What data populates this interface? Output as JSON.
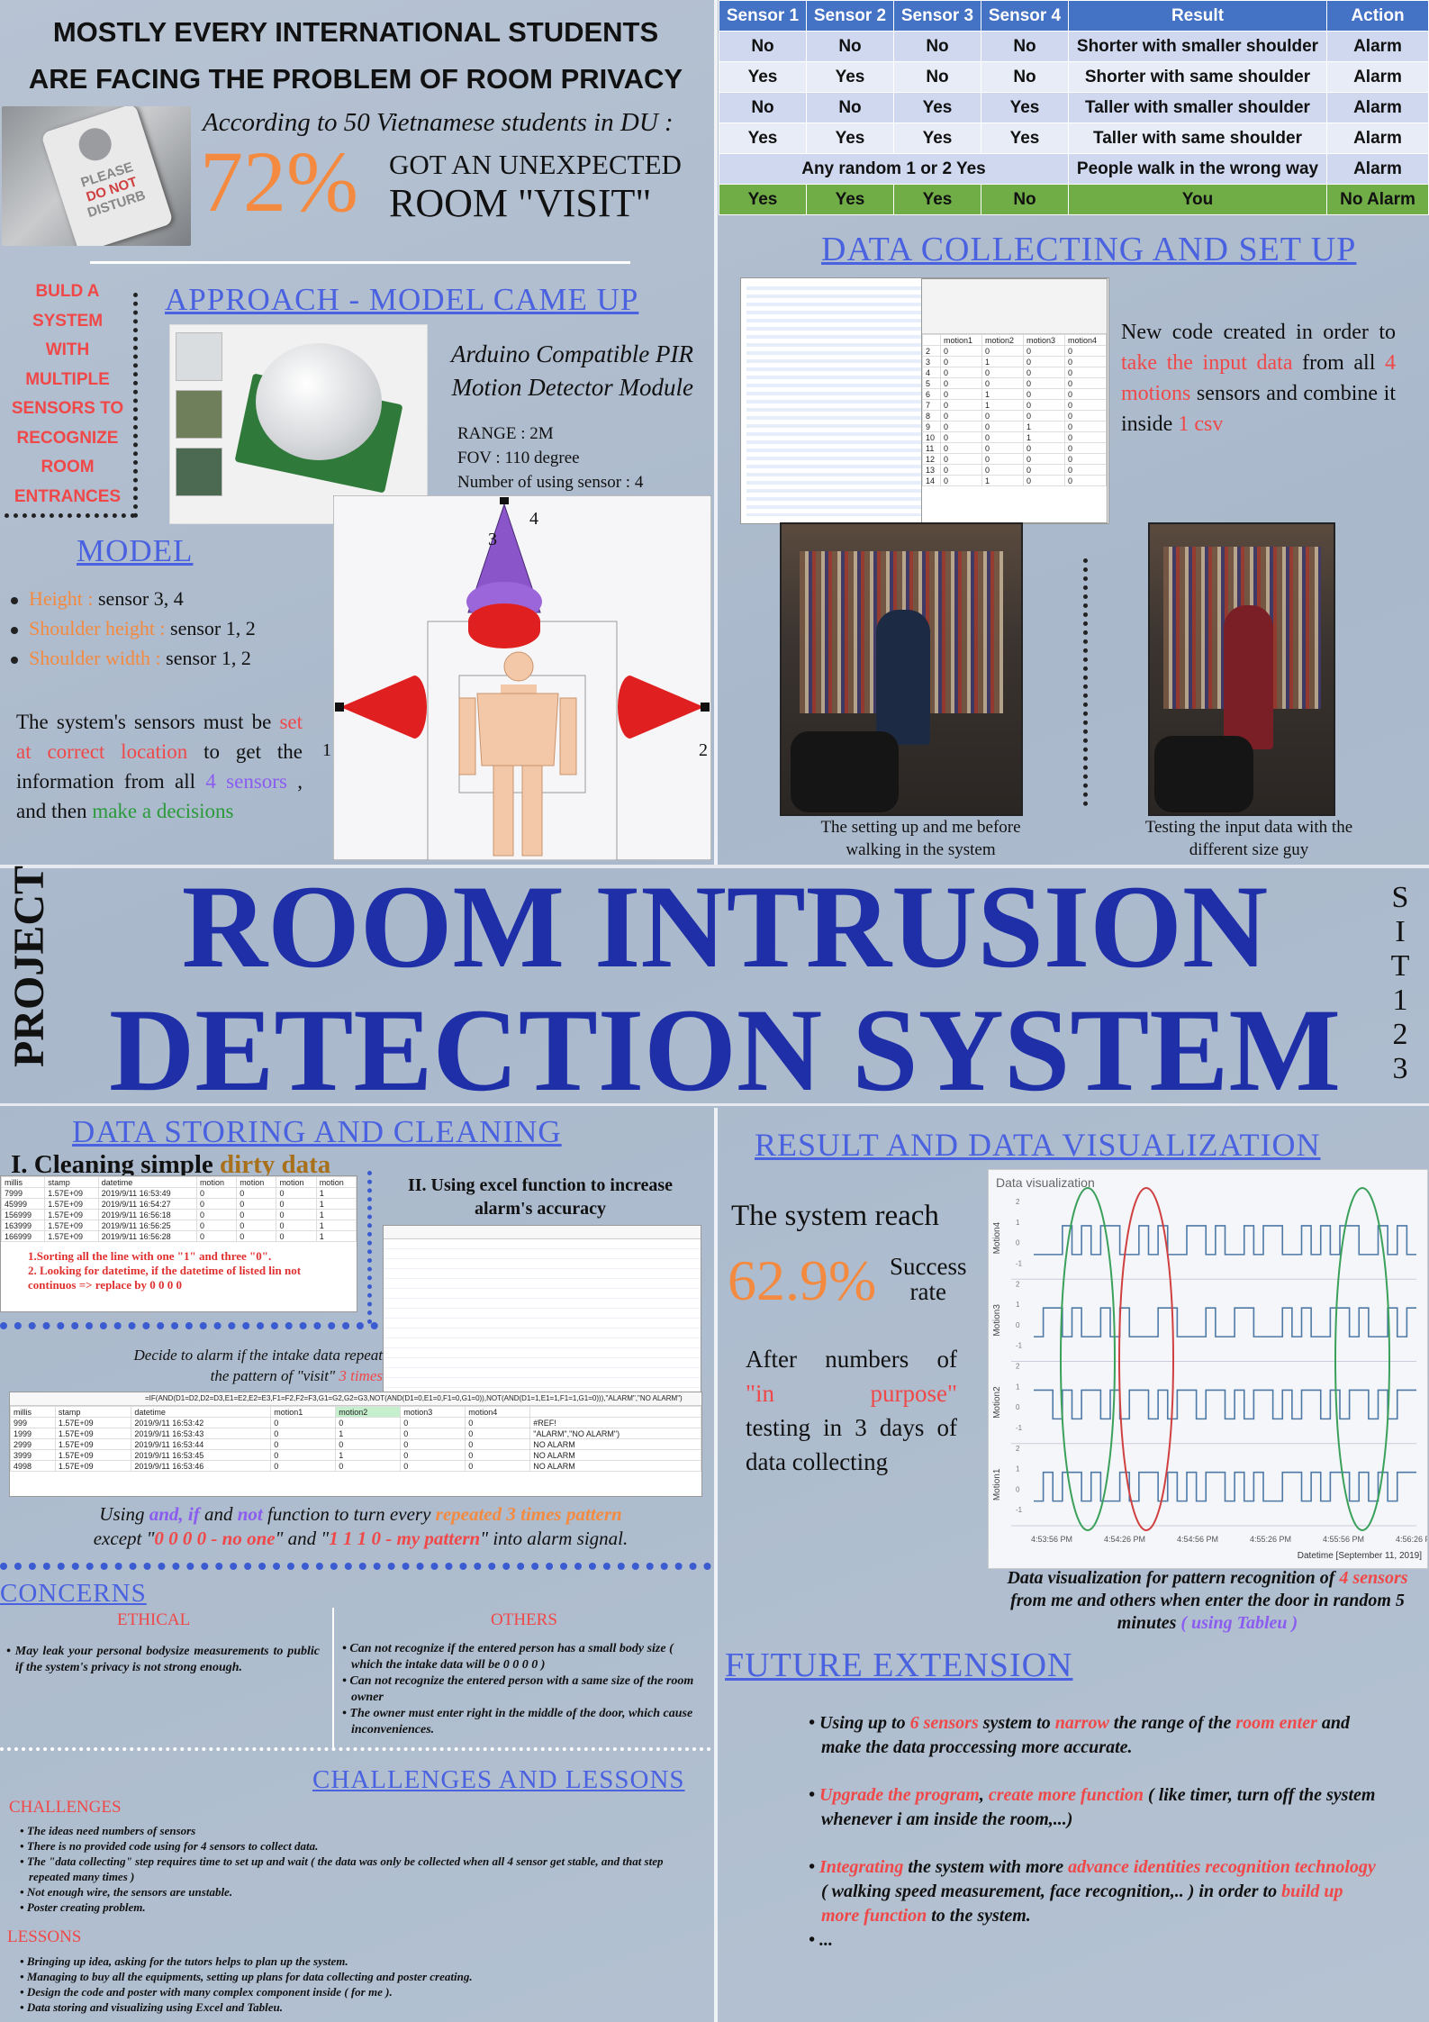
{
  "headline": {
    "line1": "MOSTLY EVERY INTERNATIONAL STUDENTS",
    "line2": "ARE FACING THE PROBLEM OF ROOM PRIVACY",
    "survey": "According to 50 Vietnamese students in DU :",
    "percent": "72%",
    "got": "GOT AN UNEXPECTED",
    "room_visit": "ROOM \"VISIT\"",
    "sign": [
      "PLEASE",
      "DO NOT",
      "DISTURB"
    ]
  },
  "sensor_table": {
    "headers": [
      "Sensor 1",
      "Sensor 2",
      "Sensor 3",
      "Sensor 4",
      "Result",
      "Action"
    ],
    "rows": [
      [
        "No",
        "No",
        "No",
        "No",
        "Shorter with smaller shoulder",
        "Alarm"
      ],
      [
        "Yes",
        "Yes",
        "No",
        "No",
        "Shorter with same shoulder",
        "Alarm"
      ],
      [
        "No",
        "No",
        "Yes",
        "Yes",
        "Taller with smaller shoulder",
        "Alarm"
      ],
      [
        "Yes",
        "Yes",
        "Yes",
        "Yes",
        "Taller with same shoulder",
        "Alarm"
      ]
    ],
    "random_row": {
      "label": "Any random 1 or 2 Yes",
      "result": "People walk in the wrong way",
      "action": "Alarm"
    },
    "final_row": [
      "Yes",
      "Yes",
      "Yes",
      "No",
      "You",
      "No Alarm"
    ]
  },
  "approach": {
    "title": "APPROACH - MODEL CAME UP",
    "side_text": [
      "BULD A",
      "SYSTEM",
      "WITH",
      "MULTIPLE",
      "SENSORS TO",
      "RECOGNIZE",
      "ROOM",
      "ENTRANCES"
    ],
    "module_line1": "Arduino Compatible PIR",
    "module_line2": "Motion Detector Module",
    "range": "RANGE : 2M",
    "fov": "FOV : 110 degree",
    "count": "Number of using sensor : 4"
  },
  "model": {
    "title": "MODEL",
    "items": [
      {
        "label": "Height :",
        "value": " sensor 3, 4"
      },
      {
        "label": "Shoulder height :",
        "value": " sensor 1, 2"
      },
      {
        "label": "Shoulder width :",
        "value": " sensor 1, 2"
      }
    ],
    "para": {
      "p1": "The system's sensors must be ",
      "p2": "set at correct location",
      "p3": " to get the information from all ",
      "p4": "4 sensors",
      "p5": " , and then ",
      "p6": "make a decisions"
    },
    "diagram_labels": [
      "3",
      "4",
      "1",
      "2"
    ]
  },
  "data_collect": {
    "title": "DATA COLLECTING AND SET UP",
    "t1": "New code created in order to ",
    "t2": "take the input data",
    "t3": " from all ",
    "t4": "4 motions",
    "t5": " sensors and combine it inside ",
    "t6": "1 csv",
    "caption1": "The setting up and me before walking in the system",
    "caption2": "Testing the input data with the different size guy",
    "excel_cols": [
      "motion1",
      "motion2",
      "motion3",
      "motion4"
    ]
  },
  "title": {
    "project": "PROJECT",
    "line1": "ROOM INTRUSION",
    "line2": "DETECTION SYSTEM",
    "code": [
      "S",
      "I",
      "T",
      "1",
      "2",
      "3"
    ]
  },
  "storing": {
    "title": "DATA STORING AND CLEANING",
    "h1a": "I. Cleaning simple ",
    "h1b": "dirty data",
    "h2": "II. Using excel function to increase alarm's accuracy",
    "note1": "1.Sorting all the line with one \"1\" and three \"0\".",
    "note2": "2. Looking for datetime, if the datetime of listed lin not continuos => replace by 0 0 0 0",
    "decide1": "Decide to alarm if the intake data repeat",
    "decide2a": "the pattern of \"visit\" ",
    "decide2b": "3 times",
    "formula": "=IF(AND(D1=D2,D2=D3,E1=E2,E2=E3,F1=F2,F2=F3,G1=G2,G2=G3,NOT(AND(D1=0,E1=0,F1=0,G1=0)),NOT(AND(D1=1,E1=1,F1=1,G1=0))),\"ALARM\",\"NO ALARM\")",
    "using": {
      "a": "Using ",
      "b": "and, if",
      "c": " and ",
      "d": "not",
      "e": " function to turn every ",
      "f": "repeated 3 times pattern",
      "g": "except \"",
      "h": "0 0 0 0 - no one",
      "i": "\" and \"",
      "j": "1 1 1 0 - my pattern",
      "k": "\" into alarm signal."
    }
  },
  "result": {
    "title": "RESULT AND DATA VISUALIZATION",
    "reach": "The system reach",
    "percent": "62.9%",
    "success": "Success",
    "rate": "rate",
    "after1": "After numbers of",
    "after2": "\"in purpose\"",
    "after3": "testing in 3 days of data collecting",
    "chart_title": "Data visualization",
    "caption_a": "Data visualization for pattern recognition of ",
    "caption_b": "4 sensors",
    "caption_c": " from me and others when enter the door in random 5 minutes ",
    "caption_d": "( using Tableu )"
  },
  "chart_data": {
    "type": "line",
    "title": "Data visualization",
    "xlabel": "Datetime [September 11, 2019]",
    "x_ticks": [
      "4:53:56 PM",
      "4:54:26 PM",
      "4:54:56 PM",
      "4:55:26 PM",
      "4:55:56 PM",
      "4:56:26 PM"
    ],
    "series": [
      {
        "name": "Motion4",
        "values": [
          0,
          0,
          0,
          1,
          0,
          1,
          0,
          1,
          1,
          0,
          0,
          1,
          0,
          1,
          0,
          0,
          1,
          1,
          0,
          1,
          0,
          0,
          1,
          0,
          1,
          1,
          0,
          0,
          1,
          0,
          1,
          0,
          1,
          1,
          0,
          0,
          1,
          0,
          1,
          0
        ]
      },
      {
        "name": "Motion3",
        "values": [
          0,
          1,
          1,
          0,
          1,
          0,
          0,
          1,
          0,
          1,
          0,
          0,
          0,
          1,
          1,
          0,
          0,
          0,
          1,
          0,
          0,
          1,
          1,
          0,
          0,
          0,
          1,
          0,
          1,
          0,
          0,
          1,
          1,
          0,
          1,
          0,
          0,
          1,
          0,
          1
        ]
      },
      {
        "name": "Motion2",
        "values": [
          1,
          1,
          0,
          1,
          0,
          1,
          1,
          0,
          1,
          0,
          1,
          1,
          0,
          1,
          0,
          1,
          1,
          0,
          1,
          1,
          0,
          1,
          0,
          1,
          1,
          0,
          1,
          0,
          1,
          1,
          0,
          1,
          0,
          1,
          1,
          0,
          1,
          0,
          1,
          1
        ]
      },
      {
        "name": "Motion1",
        "values": [
          0,
          1,
          0,
          1,
          1,
          0,
          1,
          0,
          0,
          1,
          0,
          1,
          1,
          0,
          1,
          0,
          1,
          0,
          1,
          1,
          0,
          1,
          0,
          1,
          0,
          0,
          1,
          1,
          0,
          1,
          0,
          1,
          1,
          0,
          1,
          0,
          1,
          0,
          1,
          1
        ]
      }
    ],
    "y_ticks": [
      "2",
      "1",
      "0",
      "-1"
    ],
    "grid": false
  },
  "concerns": {
    "title": "CONCERNS",
    "ethical_title": "ETHICAL",
    "others_title": "OTHERS",
    "ethical": [
      "May leak your personal bodysize measurements to public if the system's privacy is not strong enough."
    ],
    "others": [
      "Can not recognize if the entered person has a small body size ( which the intake data will be 0 0 0 0 )",
      "Can not recognize the entered person with a same size of the room owner",
      "The owner must enter right in the middle of the door, which cause inconveniences."
    ]
  },
  "challenges": {
    "title": "CHALLENGES AND LESSONS",
    "ch_title": "CHALLENGES",
    "items": [
      "The ideas need numbers of sensors",
      "There is no provided code using for 4 sensors to collect data.",
      "The \"data collecting\" step requires time to set up and wait ( the data was only be collected when all 4 sensor get stable, and that step repeated many times )",
      "Not enough wire, the sensors are unstable.",
      "Poster creating problem."
    ],
    "ls_title": "LESSONS",
    "lessons": [
      "Bringing up idea, asking for the tutors helps to plan up the system.",
      "Managing to buy all the equipments, setting up plans for data collecting and poster creating.",
      "Design the code and poster with many complex component inside ( for me ).",
      "Data storing and visualizing using Excel and Tableu."
    ]
  },
  "future": {
    "title": "FUTURE EXTENSION",
    "f1": {
      "a": "Using up to ",
      "b": "6 sensors",
      "c": " system to ",
      "d": "narrow",
      "e": " the range of the ",
      "f": "room enter",
      "g": " and make the data proccessing more accurate."
    },
    "f2": {
      "a": "Upgrade the program",
      "b": ", ",
      "c": "create more function",
      "d": " ( like timer, turn off the system whenever i am inside the room,...)"
    },
    "f3": {
      "a": "Integrating",
      "b": " the system with more ",
      "c": "advance identities recognition technology",
      "d": " ( walking speed measurement, face recognition,.. ) in order to ",
      "e": "build up more function",
      "f": " to the system."
    },
    "f4": "..."
  },
  "colors": {
    "blue_title": "#1f2fa8",
    "section_blue": "#4a62e0",
    "accent_red": "#f04848",
    "accent_orange": "#f48a40",
    "table_header": "#4472c4",
    "table_green": "#70ad47"
  }
}
